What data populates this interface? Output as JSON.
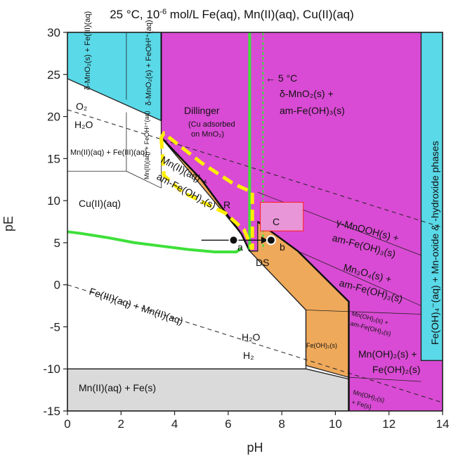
{
  "chart_data": {
    "type": "area",
    "title": "25 °C, 10",
    "title_exp": "-6",
    "title_rest": " mol/L Fe(aq), Mn(II)(aq), Cu(II)(aq)",
    "xlabel": "pH",
    "ylabel": "pE",
    "xlim": [
      0,
      14
    ],
    "ylim": [
      -15,
      30
    ],
    "xticks": [
      0,
      2,
      4,
      6,
      8,
      10,
      12,
      14
    ],
    "yticks": [
      -15,
      -10,
      -5,
      0,
      5,
      10,
      15,
      20,
      25,
      30
    ],
    "colors": {
      "fe_iii_mno2": "#5ad9e8",
      "mno2_amfe": "#d94bd4",
      "mn_ii_amfe": "#efa95a",
      "mn_fe_s": "#dadada",
      "cu_ii_line": "#3ee03a",
      "dillinger_outline": "#ffee00",
      "c_box": "#e896d8",
      "c_box_edge": "#ff2020",
      "ds_label": "#ff2020",
      "r_label": "#ffee00"
    },
    "regions": [
      {
        "name": "fe-iii-mno2",
        "color": "#5ad9e8",
        "polygon": [
          [
            0,
            30
          ],
          [
            3.5,
            30
          ],
          [
            3.5,
            19.5
          ],
          [
            0,
            24.5
          ]
        ]
      },
      {
        "name": "mno2-amfe",
        "color": "#d94bd4",
        "polygon": [
          [
            3.5,
            30
          ],
          [
            13.2,
            30
          ],
          [
            13.2,
            -9
          ],
          [
            14,
            -9
          ],
          [
            14,
            -15
          ],
          [
            10.5,
            -15
          ],
          [
            10.5,
            -11
          ],
          [
            8.9,
            -7
          ],
          [
            8.9,
            -3
          ],
          [
            6.8,
            4
          ],
          [
            6.5,
            6
          ],
          [
            5,
            12.5
          ],
          [
            3.5,
            17.5
          ]
        ]
      },
      {
        "name": "mn-ii-amfe",
        "color": "#efa95a",
        "polygon": [
          [
            3.5,
            17.5
          ],
          [
            5,
            12.5
          ],
          [
            6.5,
            6
          ],
          [
            6.8,
            4
          ],
          [
            7.1,
            4
          ],
          [
            7.1,
            7.5
          ],
          [
            8.6,
            4
          ],
          [
            10.5,
            -2
          ],
          [
            10.5,
            -11
          ],
          [
            8.9,
            -9.6
          ],
          [
            8.9,
            -7
          ],
          [
            8.9,
            -3
          ],
          [
            6.8,
            4
          ],
          [
            6.5,
            6
          ]
        ]
      },
      {
        "name": "oh4-phases",
        "color": "#5ad9e8",
        "polygon": [
          [
            13.2,
            30
          ],
          [
            14,
            30
          ],
          [
            14,
            -9
          ],
          [
            13.2,
            -9
          ]
        ]
      },
      {
        "name": "mn-fe-solid",
        "color": "#dadada",
        "polygon": [
          [
            0,
            -10
          ],
          [
            8.9,
            -10
          ],
          [
            10.5,
            -11.2
          ],
          [
            10.5,
            -15
          ],
          [
            0,
            -15
          ]
        ]
      }
    ],
    "labels": {
      "d_mno2_fe_iii": "δ-MnO₂(s) + Fe(III)(aq)",
      "d_mno2_feoh": "δ-MnO₂(s) + FeOH²⁺(aq)",
      "o2": "O₂",
      "h2o_top": "H₂O",
      "mn_fe_aq": "Mn(II)(aq) + Fe(III)(aq)",
      "mn_feoh_aq": "Mn(II)(aq) + FeOH²⁺(aq)",
      "dillinger": "Dillinger",
      "dillinger_note_1": "(Cu adsorbed",
      "dillinger_note_2": "on MnO₂)",
      "five_c": "← 5 °C",
      "d_mno2_amfe": "δ-MnO₂(s) +",
      "d_mno2_amfe_2": "am-Fe(OH)₃(s)",
      "mn_ii_amfe_1": "Mn(II)(aq) +",
      "mn_ii_amfe_2": "am-Fe(OH)₃(s)",
      "cu_ii": "Cu(II)(aq)",
      "r": "R",
      "c": "C",
      "ds": "DS",
      "point_a": "a",
      "point_b": "b",
      "gamma_1": "γ-MnOOH(s) +",
      "gamma_2": "am-Fe(OH)₃(s)",
      "mn3o4_1": "Mn₃O₄(s) +",
      "mn3o4_2": "am-Fe(OH)₃(s)",
      "fe_mn_aq": "Fe(III)(aq) + Mn(II)(aq)",
      "h2o_bottom": "H₂O",
      "h2": "H₂",
      "feoh2": "Fe(OH)₂(s)",
      "mnoh2_amfe_1": "Mn(OH)₂(s) +",
      "mnoh2_amfe_2": "am-Fe(OH)₃(s)",
      "mnoh2_feoh2_1": "Mn(OH)₂(s) +",
      "mnoh2_feoh2_2": "Fe(OH)₂(s)",
      "mnoh2_fe_1": "Mn(OH)₂(s)",
      "mnoh2_fe_2": "+ Fe(s)",
      "mn_fe_s": "Mn(II)(aq) + Fe(s)",
      "right_band": "Fe(OH)₄⁻(aq) + Mn-oxide & -hydroxide phases"
    },
    "points": [
      {
        "name": "a",
        "x": 6.2,
        "y": 5.3,
        "fill": "#111111"
      },
      {
        "name": "b",
        "x": 7.6,
        "y": 5.3,
        "fill": "#111111"
      }
    ],
    "arrow": {
      "from": [
        5.0,
        5.3
      ],
      "to": [
        7.6,
        5.3
      ]
    },
    "green_line": {
      "x": [
        0,
        0.5,
        1.5,
        2.5,
        3.5,
        4.5,
        5.5,
        6.3,
        6.5
      ],
      "y": [
        6.3,
        6.1,
        5.6,
        5.0,
        4.6,
        4.2,
        3.9,
        3.9,
        4.3
      ]
    },
    "green_vertical_solid": 6.8,
    "green_vertical_dashed": 7.3
  }
}
